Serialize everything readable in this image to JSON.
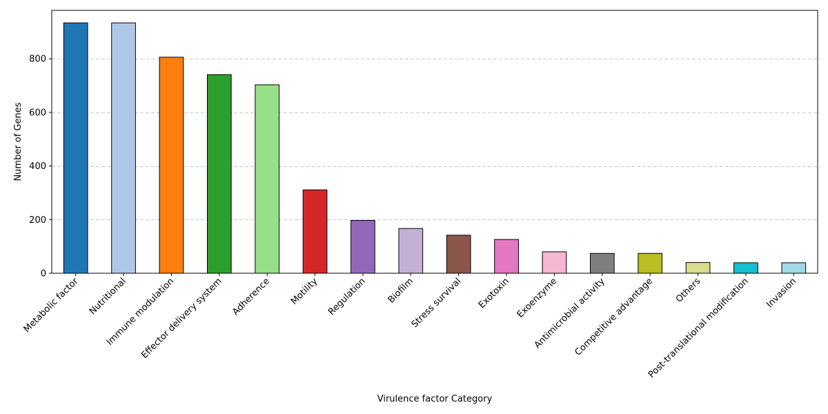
{
  "chart_data": {
    "type": "bar",
    "title": "",
    "xlabel": "Virulence factor Category",
    "ylabel": "Number of Genes",
    "ylim": [
      0,
      980.7
    ],
    "yticks": [
      0,
      200,
      400,
      600,
      800
    ],
    "grid": {
      "axis": "y",
      "style": "dashed",
      "color": "#c8c8c8"
    },
    "legend": null,
    "categories": [
      "Metabolic factor",
      "Nutritional",
      "Immune modulation",
      "Effector delivery system",
      "Adherence",
      "Motility",
      "Regulation",
      "Biofilm",
      "Stress survival",
      "Exotoxin",
      "Exoenzyme",
      "Antimicrobial activity",
      "Competitive advantage",
      "Others",
      "Post-translational modification",
      "Invasion"
    ],
    "values": [
      934,
      934,
      806,
      741,
      703,
      311,
      197,
      167,
      142,
      126,
      80,
      74,
      74,
      40,
      39,
      39
    ],
    "colors": [
      "#1f77b4",
      "#aec7e8",
      "#ff7f0e",
      "#2ca02c",
      "#98df8a",
      "#d62728",
      "#9467bd",
      "#c5b0d5",
      "#8c564b",
      "#e377c2",
      "#f7b6d2",
      "#7f7f7f",
      "#bcbd22",
      "#dbdb8d",
      "#17becf",
      "#9edae5"
    ],
    "bar_edgecolor": "#000000"
  }
}
